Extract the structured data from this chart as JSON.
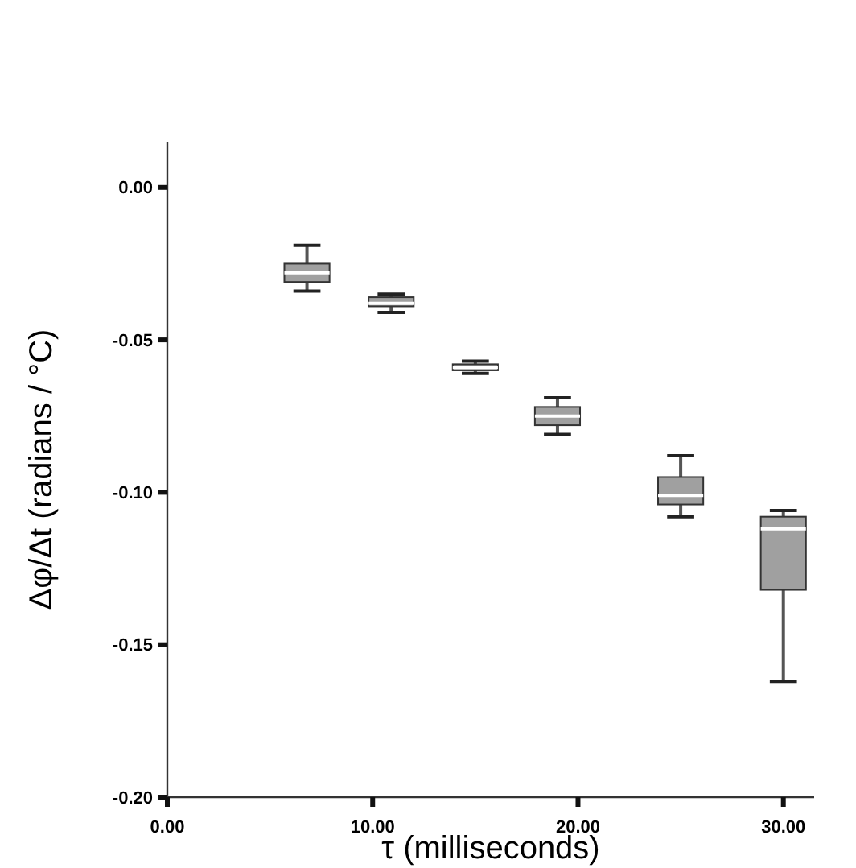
{
  "chart_data": {
    "type": "box",
    "xlabel": "τ (milliseconds)",
    "ylabel": "Δφ/Δt (radians / °C)",
    "x": [
      6.8,
      10.9,
      15,
      19,
      25,
      30
    ],
    "color": "#a0a0a0",
    "boxes": [
      {
        "low": -0.034,
        "q1": -0.031,
        "median": -0.028,
        "q3": -0.025,
        "high": -0.019
      },
      {
        "low": -0.041,
        "q1": -0.039,
        "median": -0.038,
        "q3": -0.036,
        "high": -0.035
      },
      {
        "low": -0.061,
        "q1": -0.06,
        "median": -0.059,
        "q3": -0.058,
        "high": -0.057
      },
      {
        "low": -0.081,
        "q1": -0.078,
        "median": -0.075,
        "q3": -0.072,
        "high": -0.069
      },
      {
        "low": -0.108,
        "q1": -0.104,
        "median": -0.101,
        "q3": -0.095,
        "high": -0.088
      },
      {
        "low": -0.162,
        "q1": -0.132,
        "median": -0.112,
        "q3": -0.108,
        "high": -0.106
      }
    ],
    "xlim": [
      0,
      31.5
    ],
    "ylim": [
      -0.2,
      0.015
    ],
    "xticks": [
      {
        "value": 0,
        "label": "0.00"
      },
      {
        "value": 10,
        "label": "10.00"
      },
      {
        "value": 20,
        "label": "20.00"
      },
      {
        "value": 30,
        "label": "30.00"
      }
    ],
    "yticks": [
      {
        "value": 0,
        "label": "0.00"
      },
      {
        "value": -0.05,
        "label": "-0.05"
      },
      {
        "value": -0.1,
        "label": "-0.10"
      },
      {
        "value": -0.15,
        "label": "-0.15"
      },
      {
        "value": -0.2,
        "label": "-0.20"
      }
    ],
    "grid": false
  }
}
